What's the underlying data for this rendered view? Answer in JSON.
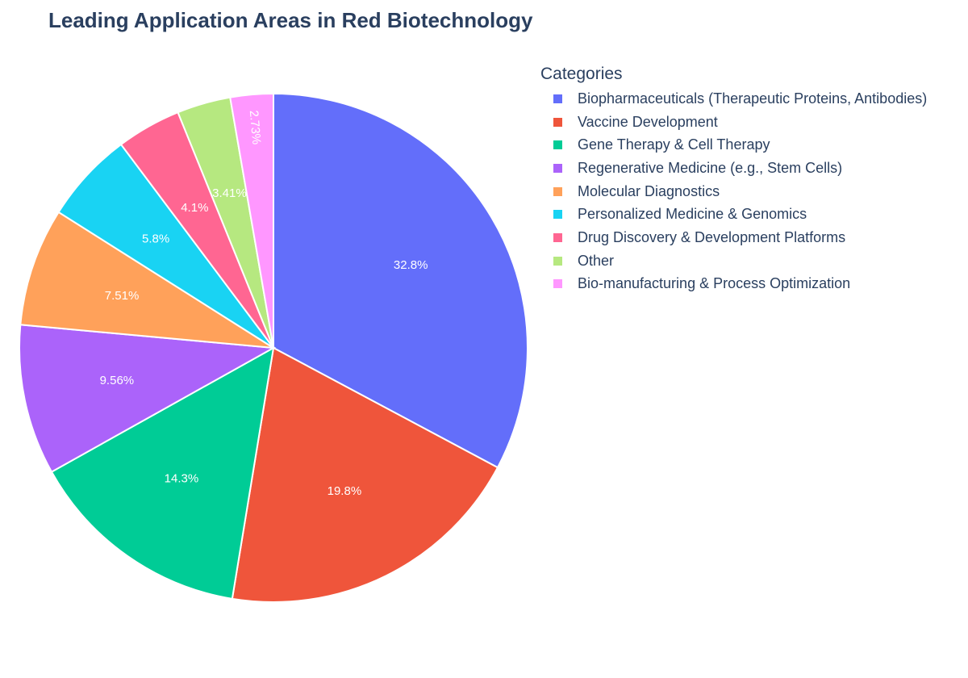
{
  "chart_data": {
    "type": "pie",
    "title": "Leading Application Areas in Red Biotechnology",
    "legend_title": "Categories",
    "legend_position": "right",
    "categories": [
      "Biopharmaceuticals (Therapeutic Proteins, Antibodies)",
      "Vaccine Development",
      "Gene Therapy & Cell Therapy",
      "Regenerative Medicine (e.g., Stem Cells)",
      "Molecular Diagnostics",
      "Personalized Medicine & Genomics",
      "Drug Discovery & Development Platforms",
      "Other",
      "Bio-manufacturing & Process Optimization"
    ],
    "values": [
      32.8,
      19.8,
      14.3,
      9.56,
      7.51,
      5.8,
      4.1,
      3.41,
      2.73
    ],
    "labels": [
      "32.8%",
      "19.8%",
      "14.3%",
      "9.56%",
      "7.51%",
      "5.8%",
      "4.1%",
      "3.41%",
      "2.73%"
    ],
    "colors": [
      "#636efa",
      "#ef553b",
      "#00cc96",
      "#ab63fa",
      "#ffa15a",
      "#19d3f3",
      "#ff6692",
      "#b6e880",
      "#ff97ff"
    ],
    "start_angle": "12 o'clock",
    "direction": "clockwise"
  }
}
